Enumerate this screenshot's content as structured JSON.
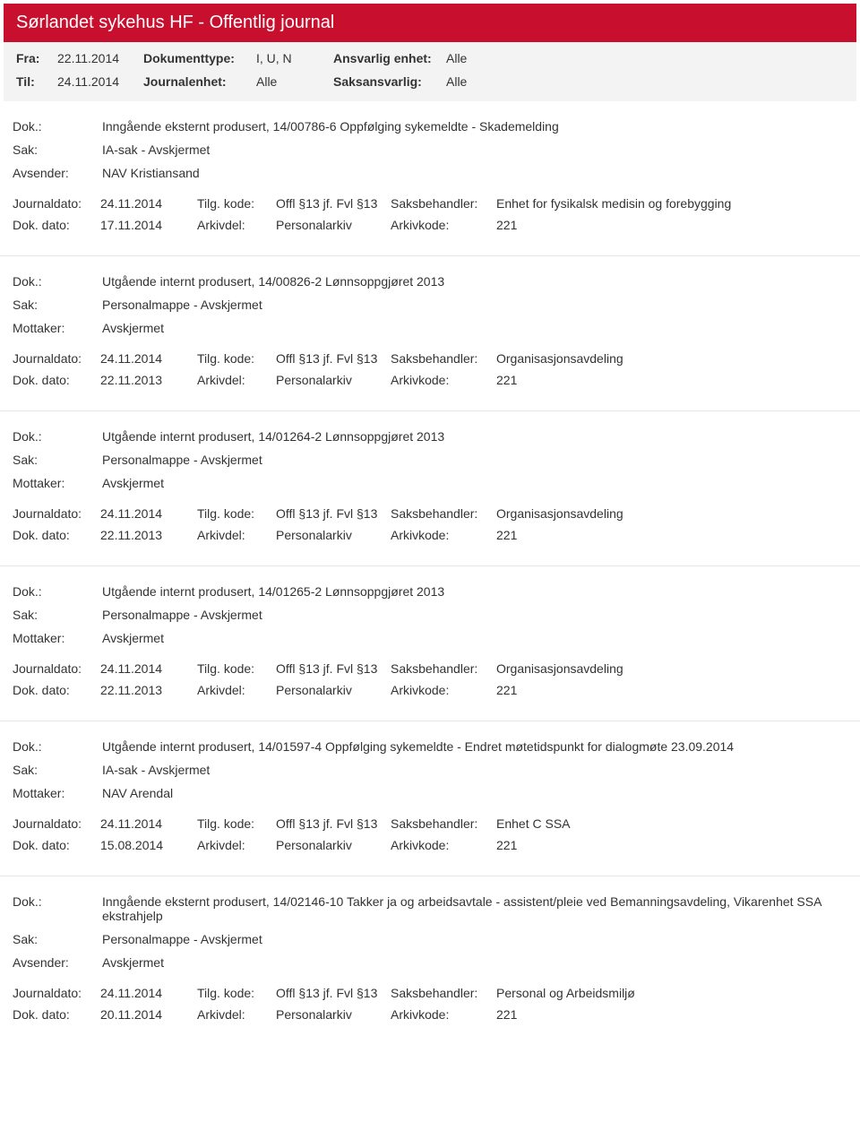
{
  "header": {
    "title": "Sørlandet sykehus HF - Offentlig journal"
  },
  "filter": {
    "fra_label": "Fra:",
    "fra_value": "22.11.2014",
    "til_label": "Til:",
    "til_value": "24.11.2014",
    "doktype_label": "Dokumenttype:",
    "doktype_value": "I, U, N",
    "journalenhet_label": "Journalenhet:",
    "journalenhet_value": "Alle",
    "ansvarlig_label": "Ansvarlig enhet:",
    "ansvarlig_value": "Alle",
    "saksansvarlig_label": "Saksansvarlig:",
    "saksansvarlig_value": "Alle"
  },
  "labels": {
    "dok": "Dok.:",
    "sak": "Sak:",
    "avsender": "Avsender:",
    "mottaker": "Mottaker:",
    "journaldato": "Journaldato:",
    "dokdato": "Dok. dato:",
    "tilgkode": "Tilg. kode:",
    "arkivdel": "Arkivdel:",
    "saksbehandler": "Saksbehandler:",
    "arkivkode": "Arkivkode:"
  },
  "entries": [
    {
      "dok": "Inngående eksternt produsert, 14/00786-6 Oppfølging sykemeldte - Skademelding",
      "sak": "IA-sak - Avskjermet",
      "party_label": "Avsender:",
      "party": "NAV Kristiansand",
      "journaldato": "24.11.2014",
      "tilgkode": "Offl §13 jf. Fvl §13",
      "saksbehandler": "Enhet for fysikalsk medisin og forebygging",
      "dokdato": "17.11.2014",
      "arkivdel": "Personalarkiv",
      "arkivkode": "221"
    },
    {
      "dok": "Utgående internt produsert, 14/00826-2 Lønnsoppgjøret 2013",
      "sak": "Personalmappe - Avskjermet",
      "party_label": "Mottaker:",
      "party": "Avskjermet",
      "journaldato": "24.11.2014",
      "tilgkode": "Offl §13 jf. Fvl §13",
      "saksbehandler": "Organisasjonsavdeling",
      "dokdato": "22.11.2013",
      "arkivdel": "Personalarkiv",
      "arkivkode": "221"
    },
    {
      "dok": "Utgående internt produsert, 14/01264-2 Lønnsoppgjøret 2013",
      "sak": "Personalmappe - Avskjermet",
      "party_label": "Mottaker:",
      "party": "Avskjermet",
      "journaldato": "24.11.2014",
      "tilgkode": "Offl §13 jf. Fvl §13",
      "saksbehandler": "Organisasjonsavdeling",
      "dokdato": "22.11.2013",
      "arkivdel": "Personalarkiv",
      "arkivkode": "221"
    },
    {
      "dok": "Utgående internt produsert, 14/01265-2 Lønnsoppgjøret 2013",
      "sak": "Personalmappe - Avskjermet",
      "party_label": "Mottaker:",
      "party": "Avskjermet",
      "journaldato": "24.11.2014",
      "tilgkode": "Offl §13 jf. Fvl §13",
      "saksbehandler": "Organisasjonsavdeling",
      "dokdato": "22.11.2013",
      "arkivdel": "Personalarkiv",
      "arkivkode": "221"
    },
    {
      "dok": "Utgående internt produsert, 14/01597-4 Oppfølging sykemeldte - Endret møtetidspunkt for dialogmøte 23.09.2014",
      "sak": "IA-sak - Avskjermet",
      "party_label": "Mottaker:",
      "party": "NAV Arendal",
      "journaldato": "24.11.2014",
      "tilgkode": "Offl §13 jf. Fvl §13",
      "saksbehandler": "Enhet C SSA",
      "dokdato": "15.08.2014",
      "arkivdel": "Personalarkiv",
      "arkivkode": "221"
    },
    {
      "dok": "Inngående eksternt produsert, 14/02146-10 Takker ja og arbeidsavtale - assistent/pleie ved Bemanningsavdeling, Vikarenhet SSA ekstrahjelp",
      "sak": "Personalmappe - Avskjermet",
      "party_label": "Avsender:",
      "party": "Avskjermet",
      "journaldato": "24.11.2014",
      "tilgkode": "Offl §13 jf. Fvl §13",
      "saksbehandler": "Personal og Arbeidsmiljø",
      "dokdato": "20.11.2014",
      "arkivdel": "Personalarkiv",
      "arkivkode": "221"
    }
  ]
}
